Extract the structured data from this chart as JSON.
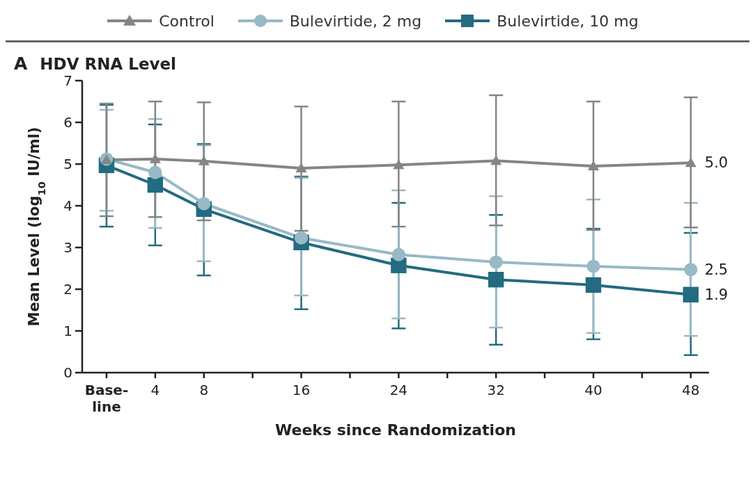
{
  "chart_data": {
    "type": "line",
    "title": "HDV RNA Level",
    "annotations": [
      "A"
    ],
    "xlabel": "Weeks since Randomization",
    "ylabel": "Mean Level (log$_{10}$ IU/ml)",
    "x": [
      0,
      4,
      8,
      16,
      24,
      32,
      40,
      48
    ],
    "xlim": [
      -2,
      49.5
    ],
    "xticks": [
      {
        "value": 0,
        "label": "Base-line"
      },
      4,
      8,
      {
        "value": 12,
        "label": null
      },
      16,
      {
        "value": 20,
        "label": null
      },
      24,
      {
        "value": 28,
        "label": null
      },
      32,
      {
        "value": 36,
        "label": null
      },
      40,
      {
        "value": 44,
        "label": null
      },
      48
    ],
    "ylim": [
      0,
      7
    ],
    "yticks": [
      0,
      1,
      2,
      3,
      4,
      5,
      6,
      7
    ],
    "grid": false,
    "legend": "top",
    "line_style": "solid",
    "series": [
      {
        "name": "Control",
        "color": "#848587",
        "marker": "triangle",
        "values": [
          5.1,
          5.12,
          5.07,
          4.9,
          4.98,
          5.08,
          4.95,
          5.03
        ],
        "errors": [
          [
            3.75,
            6.45
          ],
          [
            3.73,
            6.5
          ],
          [
            3.65,
            6.48
          ],
          [
            3.4,
            6.38
          ],
          [
            3.5,
            6.5
          ],
          [
            3.53,
            6.65
          ],
          [
            3.42,
            6.5
          ],
          [
            3.48,
            6.6
          ]
        ],
        "value_labels": [
          null,
          null,
          null,
          null,
          null,
          null,
          null,
          "5.0"
        ]
      },
      {
        "name": "Bulevirtide, 2 mg",
        "color": "#98b9c6",
        "marker": "circle",
        "values": [
          5.12,
          4.8,
          4.05,
          3.23,
          2.83,
          2.65,
          2.55,
          2.47
        ],
        "errors": [
          [
            3.88,
            6.3
          ],
          [
            3.47,
            6.08
          ],
          [
            2.67,
            5.45
          ],
          [
            1.85,
            4.67
          ],
          [
            1.3,
            4.37
          ],
          [
            1.08,
            4.23
          ],
          [
            0.95,
            4.15
          ],
          [
            0.88,
            4.07
          ]
        ],
        "value_labels": [
          null,
          null,
          null,
          null,
          null,
          null,
          null,
          "2.5"
        ]
      },
      {
        "name": "Bulevirtide, 10 mg",
        "color": "#236b80",
        "marker": "square",
        "values": [
          4.97,
          4.5,
          3.92,
          3.12,
          2.57,
          2.23,
          2.1,
          1.87
        ],
        "errors": [
          [
            3.5,
            6.42
          ],
          [
            3.05,
            5.95
          ],
          [
            2.33,
            5.48
          ],
          [
            1.52,
            4.7
          ],
          [
            1.06,
            4.07
          ],
          [
            0.67,
            3.78
          ],
          [
            0.8,
            3.45
          ],
          [
            0.42,
            3.35
          ]
        ],
        "value_labels": [
          null,
          null,
          null,
          null,
          null,
          null,
          null,
          "1.9"
        ]
      }
    ]
  }
}
